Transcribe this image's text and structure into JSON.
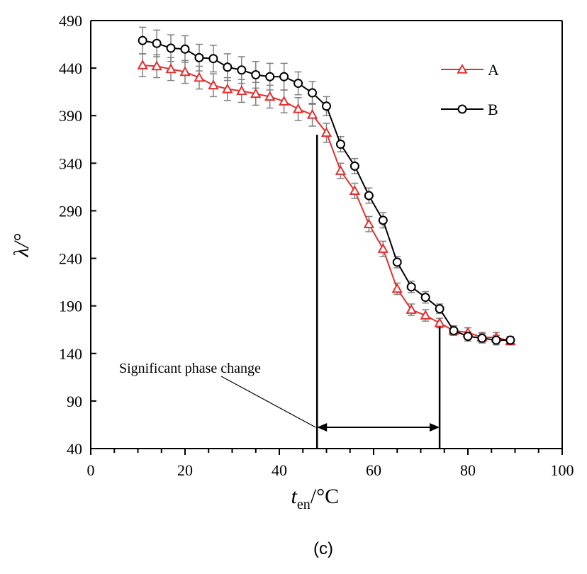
{
  "chart_data": {
    "type": "line",
    "caption": "(c)",
    "xlabel": {
      "main": "t",
      "sub": "en",
      "suffix": "/°C"
    },
    "ylabel": "λ/°",
    "xlim": [
      0,
      100
    ],
    "ylim": [
      40,
      490
    ],
    "xticks": [
      0,
      20,
      40,
      60,
      80,
      100
    ],
    "yticks": [
      40,
      90,
      140,
      190,
      240,
      290,
      340,
      390,
      440,
      490
    ],
    "legend_position": "top-right",
    "colors": {
      "A": "#e03030",
      "B": "#000000",
      "error": "#808080"
    },
    "series": [
      {
        "name": "A",
        "marker": "triangle",
        "x": [
          11,
          14,
          17,
          20,
          23,
          26,
          29,
          32,
          35,
          38,
          41,
          44,
          47,
          50,
          53,
          56,
          59,
          62,
          65,
          68,
          71,
          74,
          77,
          80,
          83,
          86,
          89
        ],
        "y": [
          443,
          442,
          439,
          436,
          430,
          422,
          418,
          416,
          413,
          410,
          405,
          397,
          391,
          372,
          332,
          311,
          276,
          250,
          208,
          186,
          180,
          172,
          164,
          162,
          157,
          157,
          153
        ],
        "err": [
          12,
          12,
          12,
          12,
          12,
          12,
          12,
          12,
          12,
          12,
          12,
          12,
          12,
          10,
          8,
          8,
          8,
          8,
          6,
          6,
          6,
          5,
          5,
          5,
          5,
          5,
          4
        ]
      },
      {
        "name": "B",
        "marker": "circle",
        "x": [
          11,
          14,
          17,
          20,
          23,
          26,
          29,
          32,
          35,
          38,
          41,
          44,
          47,
          50,
          53,
          56,
          59,
          62,
          65,
          68,
          71,
          74,
          77,
          80,
          83,
          86,
          89
        ],
        "y": [
          469,
          466,
          461,
          460,
          451,
          450,
          441,
          438,
          433,
          431,
          431,
          424,
          414,
          400,
          360,
          337,
          306,
          280,
          236,
          210,
          199,
          187,
          164,
          158,
          156,
          154,
          154
        ],
        "err": [
          14,
          14,
          14,
          14,
          14,
          14,
          14,
          14,
          14,
          14,
          14,
          12,
          12,
          10,
          8,
          8,
          8,
          8,
          6,
          6,
          6,
          5,
          5,
          5,
          5,
          5,
          4
        ]
      }
    ],
    "annotation": {
      "text": "Significant phase change",
      "x_start": 48,
      "x_end": 74
    }
  }
}
